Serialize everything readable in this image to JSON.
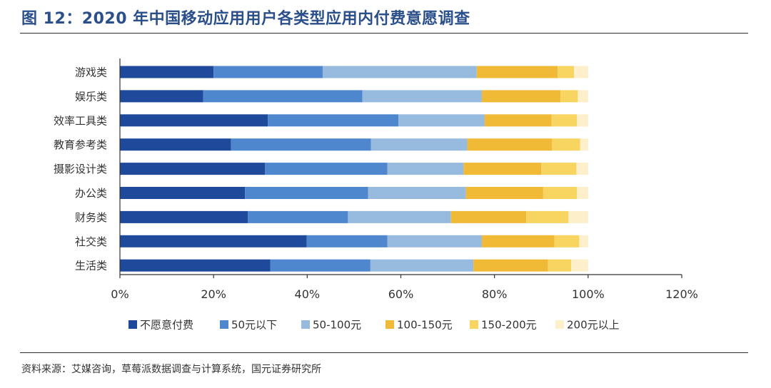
{
  "title": "图 12：2020 年中国移动应用用户各类型应用内付费意愿调查",
  "source": "资料来源：艾媒咨询，草莓派数据调查与计算系统，国元证券研究所",
  "chart_data": {
    "type": "bar",
    "orientation": "horizontal",
    "stacked": true,
    "categories": [
      "游戏类",
      "娱乐类",
      "效率工具类",
      "教育参考类",
      "摄影设计类",
      "办公类",
      "财务类",
      "社交类",
      "生活类"
    ],
    "series": [
      {
        "name": "不愿意付费",
        "color": "#1f4a9c",
        "values": [
          20.0,
          17.8,
          31.6,
          23.7,
          31.0,
          26.7,
          27.3,
          39.9,
          32.1
        ]
      },
      {
        "name": "50元以下",
        "color": "#4f87cf",
        "values": [
          23.3,
          34.0,
          27.9,
          29.9,
          26.1,
          26.3,
          21.4,
          17.2,
          21.4
        ]
      },
      {
        "name": "50-100元",
        "color": "#97badf",
        "values": [
          32.9,
          25.5,
          18.4,
          20.6,
          16.3,
          20.9,
          22.0,
          20.2,
          22.0
        ]
      },
      {
        "name": "100-150元",
        "color": "#f0b936",
        "values": [
          17.3,
          16.8,
          14.3,
          18.1,
          16.6,
          16.5,
          16.1,
          15.5,
          15.9
        ]
      },
      {
        "name": "150-200元",
        "color": "#f8d461",
        "values": [
          3.5,
          3.7,
          5.4,
          6.0,
          7.5,
          7.2,
          9.0,
          5.3,
          5.0
        ]
      },
      {
        "name": "200元以上",
        "color": "#fcefc9",
        "values": [
          3.0,
          2.2,
          2.4,
          1.7,
          2.5,
          2.4,
          4.2,
          1.9,
          3.6
        ]
      }
    ],
    "xlim": [
      0,
      120
    ],
    "x_ticks": [
      "0%",
      "20%",
      "40%",
      "60%",
      "80%",
      "100%",
      "120%"
    ],
    "legend_position": "bottom",
    "grid": false
  }
}
